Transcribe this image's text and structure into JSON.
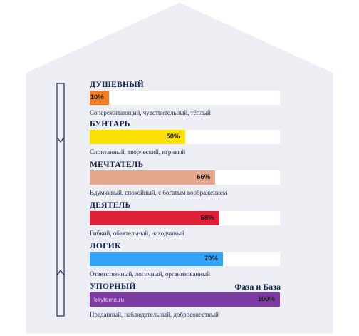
{
  "brand": "Фаза и База",
  "watermark": "keytome.ru",
  "colors": {
    "house_fill": "#eceef4",
    "house_stroke": "#ffffff",
    "indicator": "#1b2a5a",
    "text_dark": "#13244a"
  },
  "traits": [
    {
      "title": "ДУШЕВНЫЙ",
      "percent_label": "10%",
      "value": 10,
      "color": "#f47b20",
      "description": "Сопереживающий, чувствительный, тёплый"
    },
    {
      "title": "БУНТАРЬ",
      "percent_label": "50%",
      "value": 50,
      "color": "#fbe100",
      "description": "Спонтанный, творческий, игривый"
    },
    {
      "title": "МЕЧТАТЕЛЬ",
      "percent_label": "66%",
      "value": 66,
      "color": "#e5a88c",
      "description": "Вдумчивый, спокойный, с богатым воображением"
    },
    {
      "title": "ДЕЯТЕЛЬ",
      "percent_label": "68%",
      "value": 68,
      "color": "#df1f37",
      "description": "Гибкий, обаятельный, находчивый"
    },
    {
      "title": "ЛОГИК",
      "percent_label": "70%",
      "value": 70,
      "color": "#35a3f5",
      "description": "Ответственный, логичный, организованный"
    },
    {
      "title": "УПОРНЫЙ",
      "percent_label": "100%",
      "value": 100,
      "color": "#7e3aa3",
      "description": "Преданный, наблюдательный, добросовестный"
    }
  ]
}
